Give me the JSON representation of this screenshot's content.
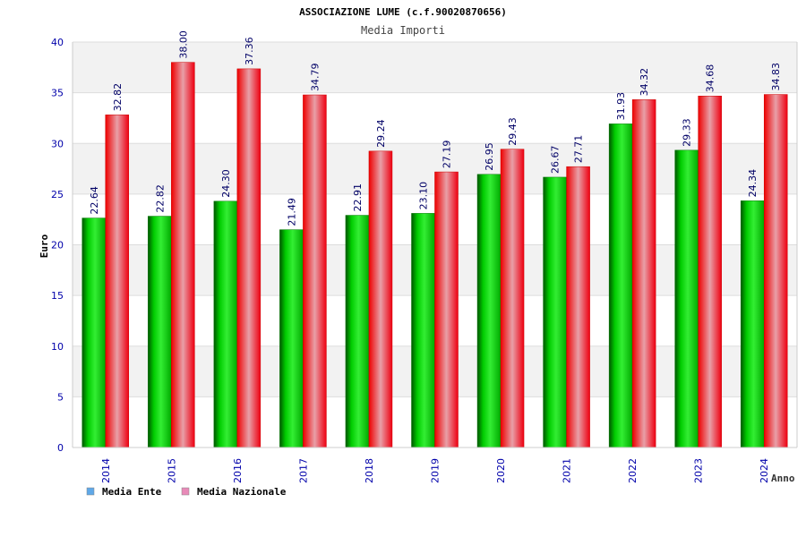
{
  "chart_data": {
    "type": "bar",
    "title": "ASSOCIAZIONE LUME (c.f.90020870656)",
    "subtitle": "Media Importi",
    "xlabel": "Anno",
    "ylabel": "Euro",
    "ylim": [
      0,
      40
    ],
    "yticks": [
      0,
      5,
      10,
      15,
      20,
      25,
      30,
      35,
      40
    ],
    "categories": [
      "2014",
      "2015",
      "2016",
      "2017",
      "2018",
      "2019",
      "2020",
      "2021",
      "2022",
      "2023",
      "2024"
    ],
    "series": [
      {
        "name": "Media Ente",
        "color": "#00aa00",
        "values": [
          22.64,
          22.82,
          24.3,
          21.49,
          22.91,
          23.1,
          26.95,
          26.67,
          31.93,
          29.33,
          24.34
        ],
        "labels": [
          "22.64",
          "22.82",
          "24.30",
          "21.49",
          "22.91",
          "23.10",
          "26.95",
          "26.67",
          "31.93",
          "29.33",
          "24.34"
        ]
      },
      {
        "name": "Media Nazionale",
        "color": "#ee1122",
        "values": [
          32.82,
          38.0,
          37.36,
          34.79,
          29.24,
          27.19,
          29.43,
          27.71,
          34.32,
          34.68,
          34.83
        ],
        "labels": [
          "32.82",
          "38.00",
          "37.36",
          "34.79",
          "29.24",
          "27.19",
          "29.43",
          "27.71",
          "34.32",
          "34.68",
          "34.83"
        ]
      }
    ],
    "legend": {
      "placement": "bottom-left",
      "items": [
        {
          "name": "Media Ente",
          "swatch_color": "#5fa8e8"
        },
        {
          "name": "Media Nazionale",
          "swatch_color": "#e88ab8"
        }
      ]
    },
    "grid": true,
    "band_colors": [
      "#ffffff",
      "#f2f2f2"
    ],
    "axis_tick_color": "#0000aa",
    "value_label_color": "#000066"
  }
}
